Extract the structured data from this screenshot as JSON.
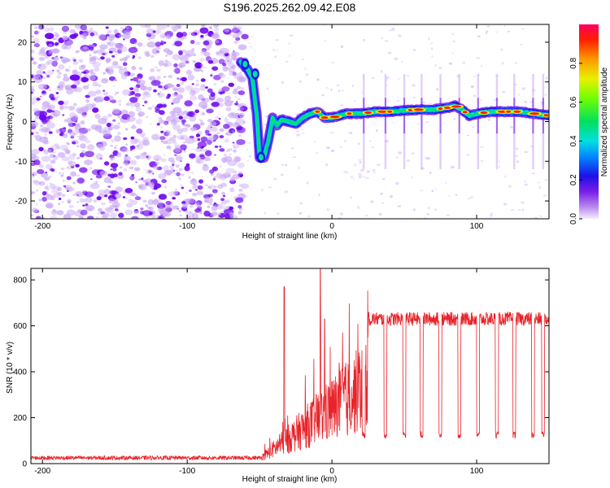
{
  "title": "S196.2025.262.09.42.E08",
  "colors": {
    "line": "#e8232a",
    "frame": "#000000",
    "speckle_dark": "#6a00f0",
    "speckle_light": "#c9a8f5"
  },
  "chart_data": [
    {
      "type": "heatmap",
      "name": "spectrogram",
      "xlabel": "Height of straight line (km)",
      "ylabel": "Frequency (Hz)",
      "xlim": [
        -208,
        150
      ],
      "ylim": [
        -24.5,
        24.5
      ],
      "xticks": [
        -200,
        -100,
        0,
        100
      ],
      "yticks": [
        -20,
        -10,
        0,
        10,
        20
      ],
      "colorbar": {
        "label": "Normalized spectral amplitude",
        "ticks": [
          0.0,
          0.2,
          0.4,
          0.6,
          0.8
        ],
        "range": [
          0,
          1
        ]
      },
      "ridge": {
        "description": "strong signal ridge frequency vs height",
        "x": [
          -63,
          -58,
          -55,
          -52,
          -50,
          -47,
          -44,
          -41,
          -38,
          -35,
          -30,
          -25,
          -20,
          -15,
          -10,
          -5,
          0,
          10,
          20,
          30,
          40,
          50,
          60,
          70,
          80,
          85,
          90,
          95,
          100,
          110,
          120,
          130,
          140,
          150
        ],
        "y": [
          15,
          13,
          11,
          2,
          -9,
          -9,
          -5,
          1,
          -1,
          0.5,
          0,
          -0.5,
          1,
          2,
          2.5,
          1,
          1,
          2,
          2,
          2.5,
          2.5,
          2.8,
          3,
          3,
          3.5,
          4,
          3,
          1.5,
          2,
          2.5,
          2.5,
          2.5,
          2,
          1.5
        ]
      }
    },
    {
      "type": "line",
      "name": "snr",
      "xlabel": "Height of straight line (km)",
      "ylabel": "SNR (10 * v/v)",
      "xlim": [
        -208,
        150
      ],
      "ylim": [
        0,
        850
      ],
      "xticks": [
        -200,
        -100,
        0,
        100
      ],
      "yticks": [
        0,
        200,
        400,
        600,
        800
      ],
      "series": [
        {
          "name": "SNR",
          "description": "noise floor ~25 until -48 km, rises erratically to ~650 plateau after ~25 km with periodic dropouts to ~120",
          "noise_floor": 25,
          "spikes": [
            [
              -33,
              770
            ],
            [
              -8,
              850
            ],
            [
              -5,
              630
            ]
          ],
          "plateau_start": 25,
          "plateau_level": 630,
          "dropout_level": 125,
          "dropout_centers": [
            22,
            37,
            50,
            62,
            75,
            88,
            101,
            114,
            126,
            139,
            146
          ]
        }
      ]
    }
  ]
}
